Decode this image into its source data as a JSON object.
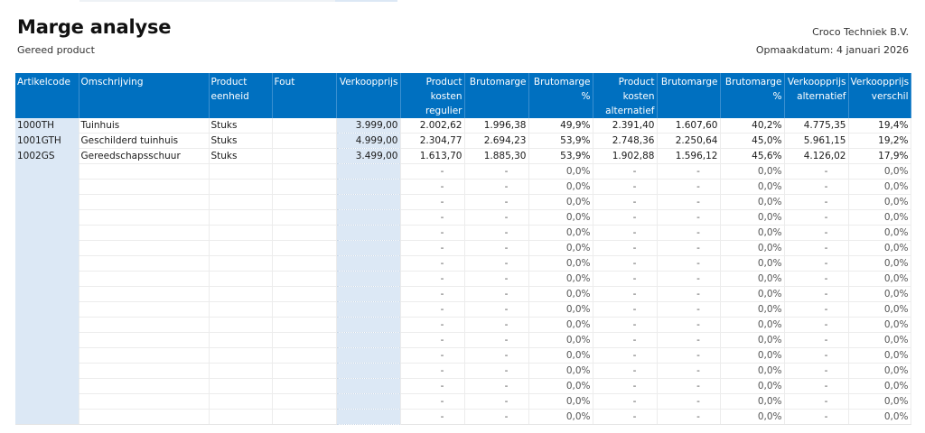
{
  "header": {
    "title": "Marge analyse",
    "subtitle": "Gereed product",
    "company": "Croco Techniek B.V.",
    "date_label": "Opmaakdatum: 4 januari 2026"
  },
  "colors": {
    "header_bg": "#0070c0",
    "header_text": "#ffffff",
    "shaded_column": "#dce8f5"
  },
  "table": {
    "columns": [
      {
        "line1": "Artikelcode",
        "line2": "",
        "line3": ""
      },
      {
        "line1": "Omschrijving",
        "line2": "",
        "line3": ""
      },
      {
        "line1": "Product",
        "line2": "eenheid",
        "line3": ""
      },
      {
        "line1": "Fout",
        "line2": "",
        "line3": ""
      },
      {
        "line1": "Verkoopprijs",
        "line2": "",
        "line3": ""
      },
      {
        "line1": "Product",
        "line2": "kosten",
        "line3": "regulier"
      },
      {
        "line1": "Brutomarge",
        "line2": "",
        "line3": ""
      },
      {
        "line1": "Brutomarge",
        "line2": "%",
        "line3": ""
      },
      {
        "line1": "Product",
        "line2": "kosten",
        "line3": "alternatief"
      },
      {
        "line1": "Brutomarge",
        "line2": "",
        "line3": ""
      },
      {
        "line1": "Brutomarge",
        "line2": "%",
        "line3": ""
      },
      {
        "line1": "Verkoopprijs",
        "line2": "alternatief",
        "line3": ""
      },
      {
        "line1": "Verkoopprijs",
        "line2": "verschil",
        "line3": ""
      }
    ],
    "rows": [
      [
        "1000TH",
        "Tuinhuis",
        "Stuks",
        "",
        "3.999,00",
        "2.002,62",
        "1.996,38",
        "49,9%",
        "2.391,40",
        "1.607,60",
        "40,2%",
        "4.775,35",
        "19,4%"
      ],
      [
        "1001GTH",
        "Geschilderd tuinhuis",
        "Stuks",
        "",
        "4.999,00",
        "2.304,77",
        "2.694,23",
        "53,9%",
        "2.748,36",
        "2.250,64",
        "45,0%",
        "5.961,15",
        "19,2%"
      ],
      [
        "1002GS",
        "Gereedschapsschuur",
        "Stuks",
        "",
        "3.499,00",
        "1.613,70",
        "1.885,30",
        "53,9%",
        "1.902,88",
        "1.596,12",
        "45,6%",
        "4.126,02",
        "17,9%"
      ],
      [
        "",
        "",
        "",
        "",
        "",
        "-",
        "-",
        "0,0%",
        "-",
        "-",
        "0,0%",
        "-",
        "0,0%"
      ],
      [
        "",
        "",
        "",
        "",
        "",
        "-",
        "-",
        "0,0%",
        "-",
        "-",
        "0,0%",
        "-",
        "0,0%"
      ],
      [
        "",
        "",
        "",
        "",
        "",
        "-",
        "-",
        "0,0%",
        "-",
        "-",
        "0,0%",
        "-",
        "0,0%"
      ],
      [
        "",
        "",
        "",
        "",
        "",
        "-",
        "-",
        "0,0%",
        "-",
        "-",
        "0,0%",
        "-",
        "0,0%"
      ],
      [
        "",
        "",
        "",
        "",
        "",
        "-",
        "-",
        "0,0%",
        "-",
        "-",
        "0,0%",
        "-",
        "0,0%"
      ],
      [
        "",
        "",
        "",
        "",
        "",
        "-",
        "-",
        "0,0%",
        "-",
        "-",
        "0,0%",
        "-",
        "0,0%"
      ],
      [
        "",
        "",
        "",
        "",
        "",
        "-",
        "-",
        "0,0%",
        "-",
        "-",
        "0,0%",
        "-",
        "0,0%"
      ],
      [
        "",
        "",
        "",
        "",
        "",
        "-",
        "-",
        "0,0%",
        "-",
        "-",
        "0,0%",
        "-",
        "0,0%"
      ],
      [
        "",
        "",
        "",
        "",
        "",
        "-",
        "-",
        "0,0%",
        "-",
        "-",
        "0,0%",
        "-",
        "0,0%"
      ],
      [
        "",
        "",
        "",
        "",
        "",
        "-",
        "-",
        "0,0%",
        "-",
        "-",
        "0,0%",
        "-",
        "0,0%"
      ],
      [
        "",
        "",
        "",
        "",
        "",
        "-",
        "-",
        "0,0%",
        "-",
        "-",
        "0,0%",
        "-",
        "0,0%"
      ],
      [
        "",
        "",
        "",
        "",
        "",
        "-",
        "-",
        "0,0%",
        "-",
        "-",
        "0,0%",
        "-",
        "0,0%"
      ],
      [
        "",
        "",
        "",
        "",
        "",
        "-",
        "-",
        "0,0%",
        "-",
        "-",
        "0,0%",
        "-",
        "0,0%"
      ],
      [
        "",
        "",
        "",
        "",
        "",
        "-",
        "-",
        "0,0%",
        "-",
        "-",
        "0,0%",
        "-",
        "0,0%"
      ],
      [
        "",
        "",
        "",
        "",
        "",
        "-",
        "-",
        "0,0%",
        "-",
        "-",
        "0,0%",
        "-",
        "0,0%"
      ],
      [
        "",
        "",
        "",
        "",
        "",
        "-",
        "-",
        "0,0%",
        "-",
        "-",
        "0,0%",
        "-",
        "0,0%"
      ],
      [
        "",
        "",
        "",
        "",
        "",
        "-",
        "-",
        "0,0%",
        "-",
        "-",
        "0,0%",
        "-",
        "0,0%"
      ]
    ]
  }
}
